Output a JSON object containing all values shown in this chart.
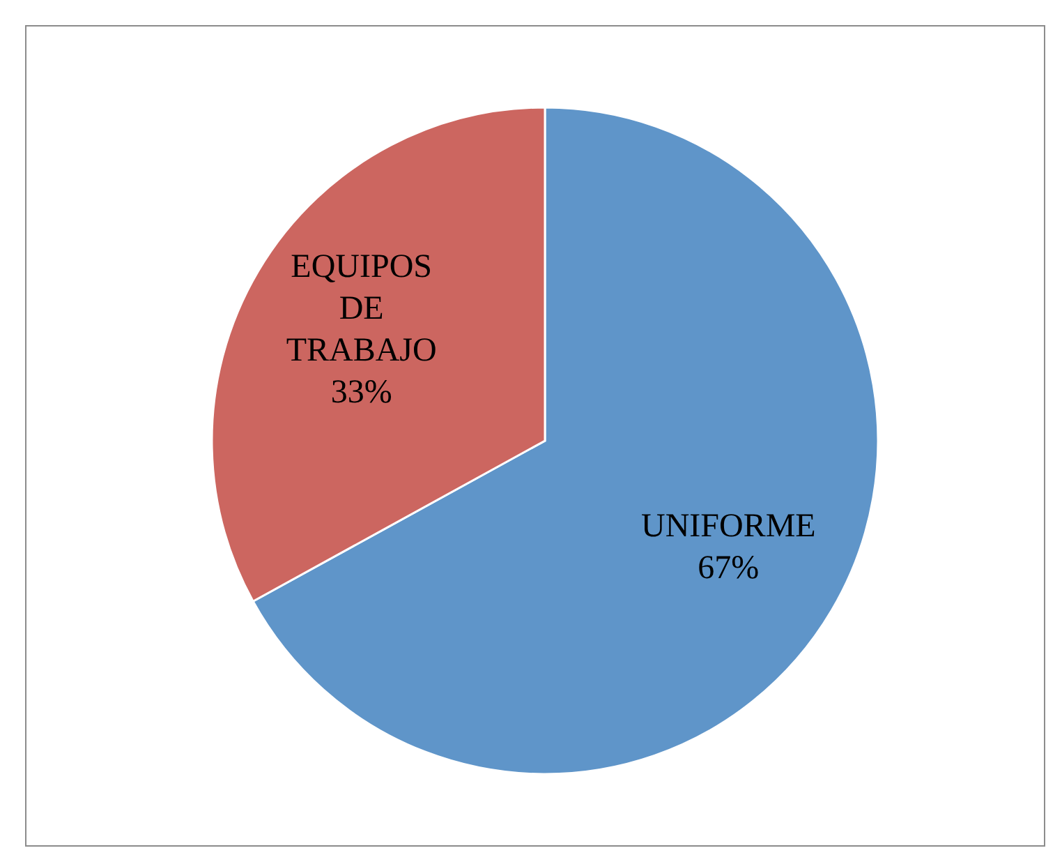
{
  "chart_data": {
    "type": "pie",
    "categories": [
      "UNIFORME",
      "EQUIPOS DE TRABAJO"
    ],
    "values": [
      67,
      33
    ],
    "colors": [
      "#5f95c9",
      "#cc6660"
    ],
    "value_labels": [
      "67%",
      "33%"
    ]
  }
}
